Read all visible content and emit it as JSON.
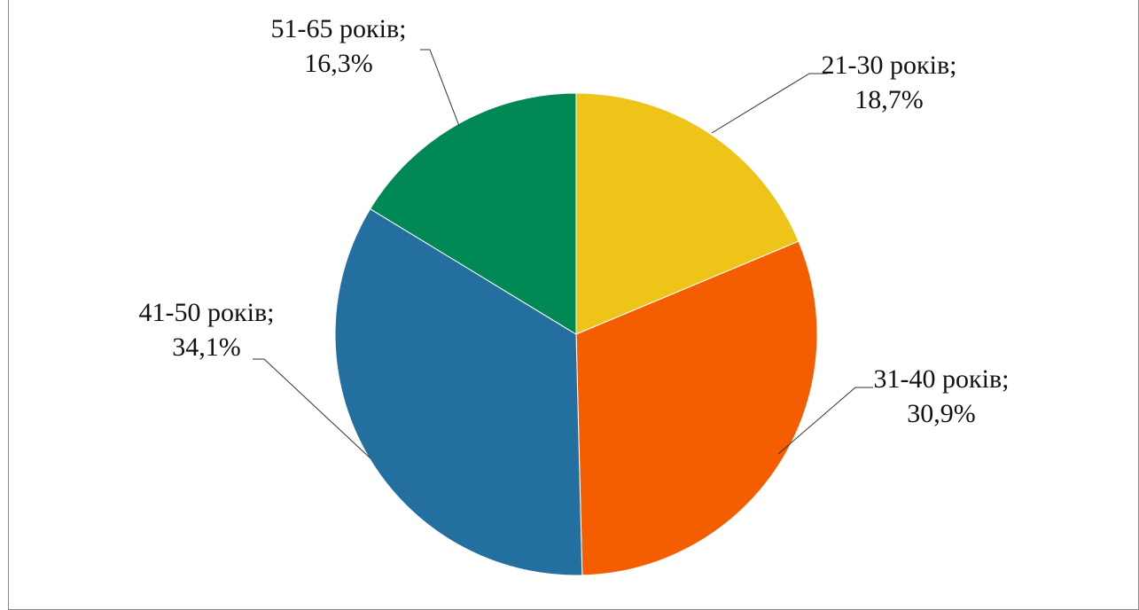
{
  "chart_data": {
    "type": "pie",
    "title": "",
    "slices": [
      {
        "category": "21-30 років",
        "value": 18.7,
        "label": "18,7%",
        "color": "#EFC419"
      },
      {
        "category": "31-40 років",
        "value": 30.9,
        "label": "30,9%",
        "color": "#F55E00"
      },
      {
        "category": "41-50 років",
        "value": 34.1,
        "label": "34,1%",
        "color": "#2370A0"
      },
      {
        "category": "51-65 років",
        "value": 16.3,
        "label": "16,3%",
        "color": "#008855"
      }
    ],
    "start_angle": "12 o'clock",
    "direction": "clockwise",
    "legend": "none"
  }
}
